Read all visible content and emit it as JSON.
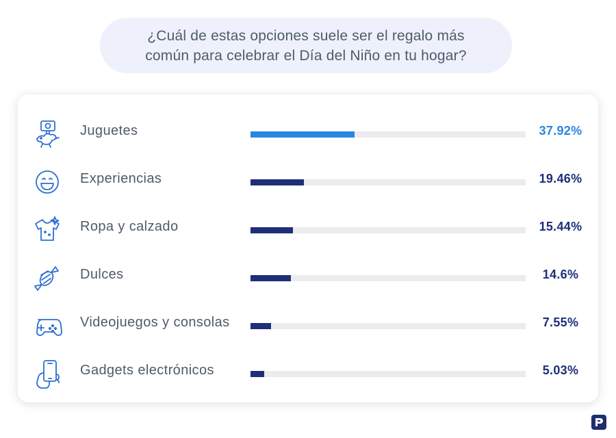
{
  "question": {
    "line1": "¿Cuál de estas opciones suele ser el regalo más",
    "line2": "común para celebrar el Día del Niño en tu hogar?"
  },
  "chart_data": {
    "type": "bar",
    "orientation": "horizontal",
    "categories": [
      "Juguetes",
      "Experiencias",
      "Ropa y calzado",
      "Dulces",
      "Videojuegos y consolas",
      "Gadgets electrónicos"
    ],
    "values": [
      37.92,
      19.46,
      15.44,
      14.6,
      7.55,
      5.03
    ],
    "value_labels": [
      "37.92%",
      "19.46%",
      "15.44%",
      "14.6%",
      "7.55%",
      "5.03%"
    ],
    "icons": [
      "toy-dinosaur-icon",
      "smiley-face-icon",
      "t-shirt-icon",
      "candy-icon",
      "gamepad-icon",
      "smartphone-hand-icon"
    ],
    "xlim": [
      0,
      100
    ],
    "highlight_color": "#2a86e0",
    "bar_color": "#1f2e78",
    "track_color": "#ececef",
    "icon_color": "#2d6fd1"
  }
}
